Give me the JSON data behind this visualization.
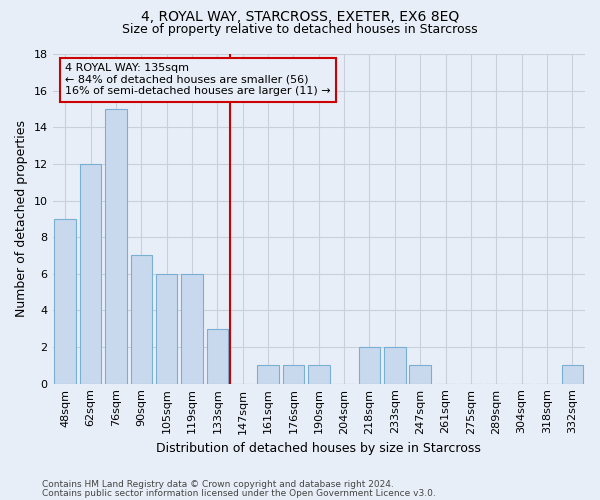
{
  "title": "4, ROYAL WAY, STARCROSS, EXETER, EX6 8EQ",
  "subtitle": "Size of property relative to detached houses in Starcross",
  "xlabel": "Distribution of detached houses by size in Starcross",
  "ylabel": "Number of detached properties",
  "categories": [
    "48sqm",
    "62sqm",
    "76sqm",
    "90sqm",
    "105sqm",
    "119sqm",
    "133sqm",
    "147sqm",
    "161sqm",
    "176sqm",
    "190sqm",
    "204sqm",
    "218sqm",
    "233sqm",
    "247sqm",
    "261sqm",
    "275sqm",
    "289sqm",
    "304sqm",
    "318sqm",
    "332sqm"
  ],
  "values": [
    9,
    12,
    15,
    7,
    6,
    6,
    3,
    0,
    1,
    1,
    1,
    0,
    2,
    2,
    1,
    0,
    0,
    0,
    0,
    0,
    1
  ],
  "bar_color": "#c8d9ee",
  "bar_edge_color": "#7aafd4",
  "vline_x_index": 6.5,
  "vline_color": "#cc0000",
  "annotation_line1": "4 ROYAL WAY: 135sqm",
  "annotation_line2": "← 84% of detached houses are smaller (56)",
  "annotation_line3": "16% of semi-detached houses are larger (11) →",
  "annotation_box_color": "#cc0000",
  "ylim": [
    0,
    18
  ],
  "yticks": [
    0,
    2,
    4,
    6,
    8,
    10,
    12,
    14,
    16,
    18
  ],
  "footer_line1": "Contains HM Land Registry data © Crown copyright and database right 2024.",
  "footer_line2": "Contains public sector information licensed under the Open Government Licence v3.0.",
  "background_color": "#e8eef7",
  "grid_color": "#c8d0dc",
  "title_fontsize": 10,
  "subtitle_fontsize": 9,
  "axis_label_fontsize": 9,
  "tick_fontsize": 8,
  "annotation_fontsize": 8,
  "footer_fontsize": 6.5
}
